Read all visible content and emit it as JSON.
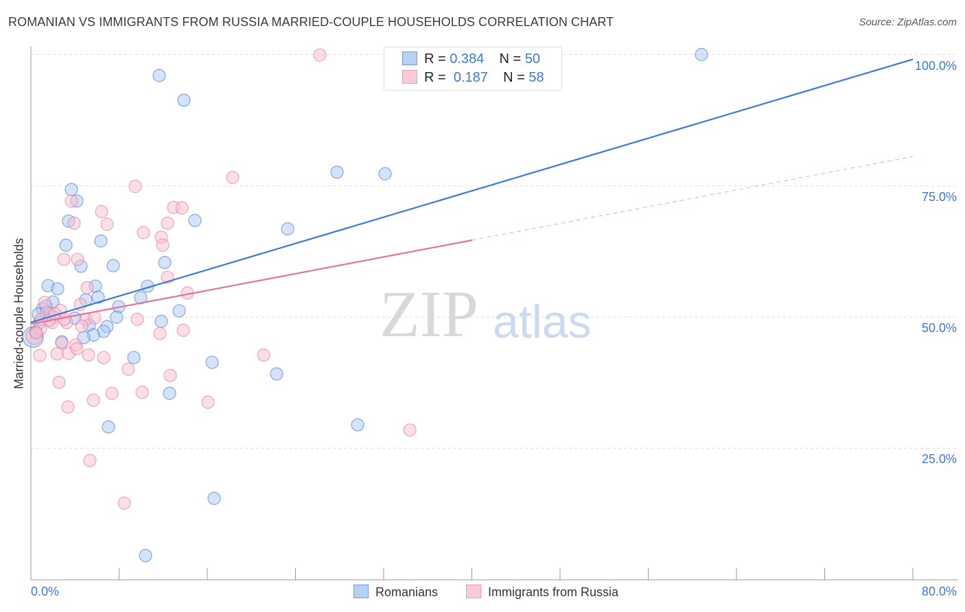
{
  "chart_data": {
    "type": "scatter",
    "title": "ROMANIAN VS IMMIGRANTS FROM RUSSIA MARRIED-COUPLE HOUSEHOLDS CORRELATION CHART",
    "source": "Source: ZipAtlas.com",
    "xlabel": "",
    "ylabel": "Married-couple Households",
    "xlim": [
      0,
      80
    ],
    "ylim": [
      0,
      100
    ],
    "x_tick_labels": [
      "0.0%",
      "80.0%"
    ],
    "y_tick_labels": [
      "100.0%",
      "75.0%",
      "50.0%",
      "25.0%"
    ],
    "y_ticks": [
      100,
      75,
      50,
      25
    ],
    "grid": true,
    "legend_placement": "top-center",
    "series": [
      {
        "name": "Romanians",
        "color": "#3b78d8",
        "fill": "#a9c8f0",
        "R": "0.384",
        "N": "50",
        "trend": {
          "x0": 0,
          "y0": 49.0,
          "x1": 80,
          "y1": 99.1,
          "dashed_from": null
        },
        "points": [
          [
            0.2,
            46.2
          ],
          [
            11.64,
            96.0
          ],
          [
            13.88,
            91.3
          ],
          [
            27.77,
            77.6
          ],
          [
            32.13,
            77.3
          ],
          [
            3.67,
            74.3
          ],
          [
            4.17,
            72.1
          ],
          [
            3.42,
            68.3
          ],
          [
            14.88,
            68.4
          ],
          [
            23.29,
            66.8
          ],
          [
            6.35,
            64.5
          ],
          [
            3.18,
            63.7
          ],
          [
            7.47,
            59.8
          ],
          [
            4.54,
            59.7
          ],
          [
            12.14,
            60.4
          ],
          [
            1.56,
            56.0
          ],
          [
            2.43,
            55.4
          ],
          [
            5.85,
            55.9
          ],
          [
            10.58,
            55.9
          ],
          [
            6.1,
            53.8
          ],
          [
            4.98,
            53.3
          ],
          [
            1.99,
            52.9
          ],
          [
            9.96,
            53.7
          ],
          [
            7.97,
            52.0
          ],
          [
            1.06,
            51.6
          ],
          [
            0.68,
            50.6
          ],
          [
            13.45,
            51.2
          ],
          [
            3.98,
            49.8
          ],
          [
            7.78,
            50.0
          ],
          [
            11.83,
            49.2
          ],
          [
            5.29,
            48.5
          ],
          [
            6.91,
            48.2
          ],
          [
            6.6,
            47.3
          ],
          [
            5.67,
            46.6
          ],
          [
            4.79,
            46.1
          ],
          [
            2.8,
            45.3
          ],
          [
            0.44,
            47.2
          ],
          [
            9.34,
            42.3
          ],
          [
            16.44,
            41.4
          ],
          [
            22.29,
            39.2
          ],
          [
            12.58,
            35.5
          ],
          [
            7.04,
            29.1
          ],
          [
            29.64,
            29.5
          ],
          [
            16.62,
            15.5
          ],
          [
            10.4,
            4.6
          ],
          [
            60.83,
            100
          ],
          [
            35.6,
            100
          ],
          [
            1.37,
            52.1
          ],
          [
            1.7,
            50.6
          ],
          [
            0.8,
            49.0
          ]
        ]
      },
      {
        "name": "Immigrants from Russia",
        "color": "#e8729a",
        "fill": "#f7bfd0",
        "R": "0.187",
        "N": "58",
        "trend": {
          "x0": 0,
          "y0": 48.7,
          "x1": 80,
          "y1": 80.6,
          "dashed_from": 40.04
        },
        "points": [
          [
            0.31,
            46.4
          ],
          [
            26.21,
            99.9
          ],
          [
            18.3,
            76.6
          ],
          [
            9.46,
            74.9
          ],
          [
            12.95,
            70.9
          ],
          [
            13.7,
            70.8
          ],
          [
            3.67,
            72.1
          ],
          [
            6.41,
            70.1
          ],
          [
            3.92,
            67.9
          ],
          [
            6.91,
            67.7
          ],
          [
            12.39,
            67.9
          ],
          [
            10.21,
            66.1
          ],
          [
            11.83,
            65.2
          ],
          [
            11.95,
            63.7
          ],
          [
            2.99,
            61.0
          ],
          [
            4.23,
            61.0
          ],
          [
            12.39,
            57.6
          ],
          [
            5.11,
            55.6
          ],
          [
            14.2,
            54.6
          ],
          [
            1.25,
            52.8
          ],
          [
            4.48,
            52.4
          ],
          [
            1.43,
            50.9
          ],
          [
            2.68,
            51.3
          ],
          [
            2.05,
            50.0
          ],
          [
            4.98,
            49.6
          ],
          [
            5.79,
            49.9
          ],
          [
            1.93,
            49.0
          ],
          [
            3.24,
            49.0
          ],
          [
            9.65,
            49.6
          ],
          [
            4.61,
            48.3
          ],
          [
            11.7,
            46.9
          ],
          [
            13.82,
            47.5
          ],
          [
            0.87,
            47.8
          ],
          [
            0.5,
            47.0
          ],
          [
            2.8,
            45.1
          ],
          [
            4.05,
            44.7
          ],
          [
            0.81,
            42.7
          ],
          [
            2.37,
            43.0
          ],
          [
            3.42,
            43.1
          ],
          [
            5.23,
            42.8
          ],
          [
            6.6,
            42.3
          ],
          [
            21.11,
            42.8
          ],
          [
            8.84,
            40.1
          ],
          [
            12.64,
            38.9
          ],
          [
            2.55,
            37.6
          ],
          [
            3.36,
            32.9
          ],
          [
            5.67,
            34.2
          ],
          [
            7.35,
            35.5
          ],
          [
            10.09,
            35.7
          ],
          [
            16.06,
            33.8
          ],
          [
            34.37,
            28.5
          ],
          [
            5.35,
            22.7
          ],
          [
            8.47,
            14.6
          ],
          [
            0.93,
            49.6
          ],
          [
            1.68,
            49.4
          ],
          [
            3.05,
            49.6
          ],
          [
            2.18,
            50.6
          ],
          [
            4.17,
            44.0
          ]
        ]
      }
    ],
    "legend": {
      "r_label": "R = ",
      "n_label": "N = "
    },
    "watermark": {
      "a": "ZIP",
      "b": "atlas"
    }
  }
}
